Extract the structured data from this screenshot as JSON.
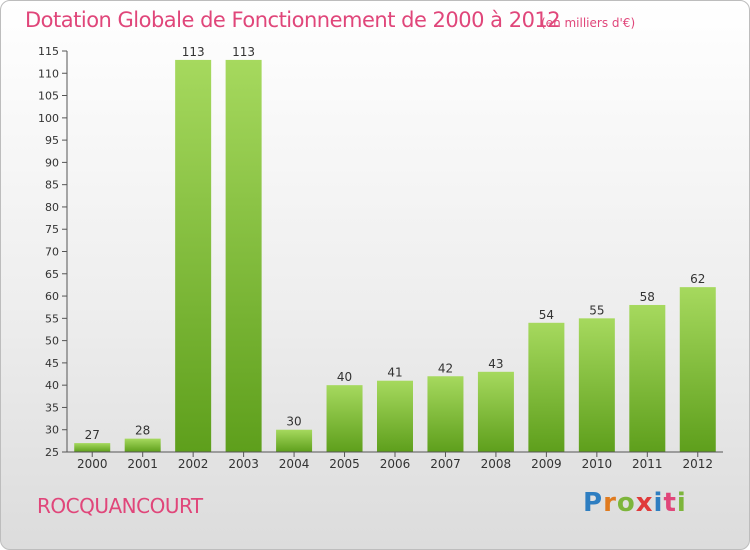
{
  "header": {
    "title": "Dotation Globale de Fonctionnement de 2000 à 2012",
    "unit": "(en milliers d'€)"
  },
  "footer": {
    "place": "ROCQUANCOURT",
    "logo_letters": [
      "P",
      "r",
      "o",
      "x",
      "i",
      "t",
      "i"
    ],
    "logo_colors": [
      "#2e7ec1",
      "#e07b1f",
      "#7db53b",
      "#e03a3a",
      "#2e7ec1",
      "#e0467a",
      "#7db53b"
    ]
  },
  "chart_data": {
    "type": "bar",
    "title": "Dotation Globale de Fonctionnement de 2000 à 2012",
    "categories": [
      "2000",
      "2001",
      "2002",
      "2003",
      "2004",
      "2005",
      "2006",
      "2007",
      "2008",
      "2009",
      "2010",
      "2011",
      "2012"
    ],
    "values": [
      27,
      28,
      113,
      113,
      30,
      40,
      41,
      42,
      43,
      54,
      55,
      58,
      62
    ],
    "ylim": [
      25,
      115
    ],
    "yticks": [
      25,
      30,
      35,
      40,
      45,
      50,
      55,
      60,
      65,
      70,
      75,
      80,
      85,
      90,
      95,
      100,
      105,
      110,
      115
    ],
    "grid": false,
    "colors": {
      "bar_light": "#a6d95e",
      "bar_dark": "#5e9f1c",
      "label": "#333333",
      "axis": "#555555"
    }
  }
}
